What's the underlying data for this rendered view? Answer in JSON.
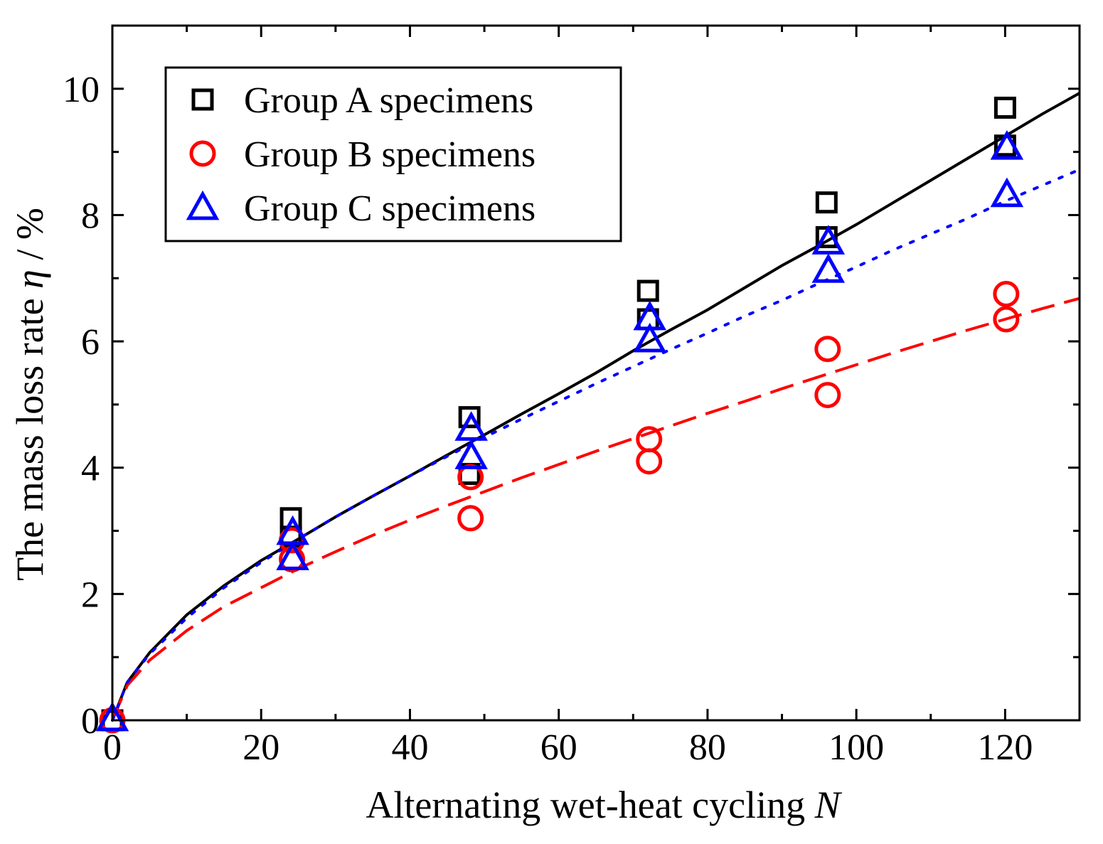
{
  "chart_data": {
    "type": "scatter",
    "xlabel": "Alternating wet-heat cycling ",
    "xlabel_var": "N",
    "ylabel": "The mass loss rate ",
    "ylabel_var": "η",
    "ylabel_unit": " / %",
    "xlim": [
      0,
      130
    ],
    "ylim": [
      0,
      11
    ],
    "xticks": [
      0,
      20,
      40,
      60,
      80,
      100,
      120
    ],
    "yticks": [
      0,
      2,
      4,
      6,
      8,
      10
    ],
    "grid": false,
    "legend_position": "top-left",
    "series": [
      {
        "name": "Group A specimens",
        "marker": "square",
        "color": "#000000",
        "points": [
          [
            0,
            0
          ],
          [
            24,
            3.2
          ],
          [
            24,
            2.9
          ],
          [
            48,
            4.8
          ],
          [
            48,
            3.9
          ],
          [
            72,
            6.8
          ],
          [
            72,
            6.35
          ],
          [
            96,
            8.2
          ],
          [
            96,
            7.65
          ],
          [
            120,
            9.7
          ],
          [
            120,
            9.1
          ]
        ],
        "fit": {
          "style": "solid",
          "curve": [
            [
              0,
              0
            ],
            [
              2,
              0.6
            ],
            [
              5,
              1.07
            ],
            [
              10,
              1.67
            ],
            [
              15,
              2.13
            ],
            [
              20,
              2.53
            ],
            [
              25,
              2.87
            ],
            [
              30,
              3.22
            ],
            [
              35,
              3.55
            ],
            [
              40,
              3.87
            ],
            [
              45,
              4.2
            ],
            [
              50,
              4.52
            ],
            [
              55,
              4.85
            ],
            [
              60,
              5.17
            ],
            [
              65,
              5.5
            ],
            [
              70,
              5.85
            ],
            [
              75,
              6.18
            ],
            [
              80,
              6.5
            ],
            [
              85,
              6.85
            ],
            [
              90,
              7.2
            ],
            [
              95,
              7.52
            ],
            [
              100,
              7.85
            ],
            [
              105,
              8.2
            ],
            [
              110,
              8.55
            ],
            [
              115,
              8.9
            ],
            [
              120,
              9.25
            ],
            [
              125,
              9.6
            ],
            [
              130,
              9.93
            ]
          ]
        }
      },
      {
        "name": "Group B specimens",
        "marker": "circle",
        "color": "#ff0000",
        "points": [
          [
            0,
            0
          ],
          [
            24,
            2.55
          ],
          [
            24,
            2.85
          ],
          [
            48,
            3.2
          ],
          [
            48,
            3.85
          ],
          [
            72,
            4.1
          ],
          [
            72,
            4.45
          ],
          [
            96,
            5.15
          ],
          [
            96,
            5.88
          ],
          [
            120,
            6.35
          ],
          [
            120,
            6.75
          ]
        ],
        "fit": {
          "style": "dashed",
          "curve": [
            [
              0,
              0
            ],
            [
              2,
              0.55
            ],
            [
              5,
              0.95
            ],
            [
              10,
              1.42
            ],
            [
              15,
              1.8
            ],
            [
              20,
              2.1
            ],
            [
              25,
              2.4
            ],
            [
              30,
              2.67
            ],
            [
              35,
              2.93
            ],
            [
              40,
              3.17
            ],
            [
              45,
              3.4
            ],
            [
              50,
              3.62
            ],
            [
              55,
              3.84
            ],
            [
              60,
              4.05
            ],
            [
              65,
              4.26
            ],
            [
              70,
              4.46
            ],
            [
              75,
              4.66
            ],
            [
              80,
              4.86
            ],
            [
              85,
              5.05
            ],
            [
              90,
              5.25
            ],
            [
              95,
              5.44
            ],
            [
              100,
              5.63
            ],
            [
              105,
              5.82
            ],
            [
              110,
              6.0
            ],
            [
              115,
              6.18
            ],
            [
              120,
              6.35
            ],
            [
              125,
              6.52
            ],
            [
              130,
              6.68
            ]
          ]
        }
      },
      {
        "name": "Group C specimens",
        "marker": "triangle",
        "color": "#0000ff",
        "points": [
          [
            0,
            0
          ],
          [
            24,
            2.55
          ],
          [
            24,
            2.95
          ],
          [
            48,
            4.15
          ],
          [
            48,
            4.6
          ],
          [
            72,
            6.0
          ],
          [
            72,
            6.35
          ],
          [
            96,
            7.1
          ],
          [
            96,
            7.55
          ],
          [
            120,
            8.3
          ],
          [
            120,
            9.05
          ]
        ],
        "fit": {
          "style": "dotted",
          "curve": [
            [
              0,
              0
            ],
            [
              2,
              0.6
            ],
            [
              5,
              1.05
            ],
            [
              10,
              1.62
            ],
            [
              15,
              2.1
            ],
            [
              20,
              2.5
            ],
            [
              25,
              2.87
            ],
            [
              30,
              3.22
            ],
            [
              35,
              3.55
            ],
            [
              40,
              3.87
            ],
            [
              45,
              4.18
            ],
            [
              50,
              4.48
            ],
            [
              55,
              4.77
            ],
            [
              60,
              5.05
            ],
            [
              65,
              5.33
            ],
            [
              70,
              5.6
            ],
            [
              75,
              5.87
            ],
            [
              80,
              6.13
            ],
            [
              85,
              6.4
            ],
            [
              90,
              6.65
            ],
            [
              95,
              6.92
            ],
            [
              100,
              7.18
            ],
            [
              105,
              7.45
            ],
            [
              110,
              7.7
            ],
            [
              115,
              7.95
            ],
            [
              120,
              8.22
            ],
            [
              125,
              8.47
            ],
            [
              130,
              8.72
            ]
          ]
        }
      }
    ]
  }
}
